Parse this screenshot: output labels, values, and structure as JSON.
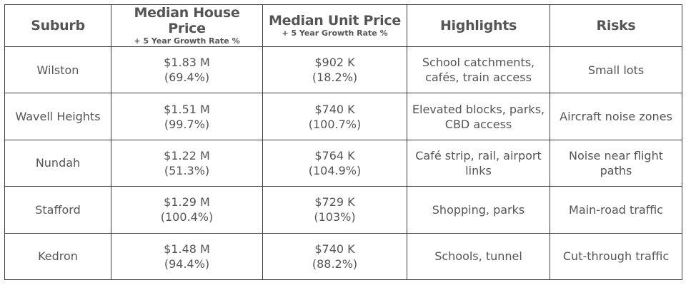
{
  "table": {
    "headers": {
      "suburb": "Suburb",
      "house_price": "Median House Price",
      "house_price_sub": "+ 5 Year Growth Rate %",
      "unit_price": "Median Unit Price",
      "unit_price_sub": "+ 5 Year Growth Rate %",
      "highlights": "Highlights",
      "risks": "Risks"
    },
    "rows": [
      {
        "suburb": "Wilston",
        "house_price": "$1.83 M",
        "house_growth": "(69.4%)",
        "unit_price": "$902 K",
        "unit_growth": "(18.2%)",
        "highlights_1": "School catchments,",
        "highlights_2": "cafés, train access",
        "risks_1": "Small lots",
        "risks_2": ""
      },
      {
        "suburb": "Wavell Heights",
        "house_price": "$1.51 M",
        "house_growth": "(99.7%)",
        "unit_price": "$740 K",
        "unit_growth": "(100.7%)",
        "highlights_1": "Elevated blocks, parks,",
        "highlights_2": "CBD access",
        "risks_1": "Aircraft noise zones",
        "risks_2": ""
      },
      {
        "suburb": "Nundah",
        "house_price": "$1.22 M",
        "house_growth": "(51.3%)",
        "unit_price": "$764 K",
        "unit_growth": "(104.9%)",
        "highlights_1": "Café strip, rail, airport",
        "highlights_2": "links",
        "risks_1": "Noise near flight",
        "risks_2": "paths"
      },
      {
        "suburb": "Stafford",
        "house_price": "$1.29 M",
        "house_growth": "(100.4%)",
        "unit_price": "$729 K",
        "unit_growth": "(103%)",
        "highlights_1": "Shopping, parks",
        "highlights_2": "",
        "risks_1": "Main-road traffic",
        "risks_2": ""
      },
      {
        "suburb": "Kedron",
        "house_price": "$1.48 M",
        "house_growth": "(94.4%)",
        "unit_price": "$740 K",
        "unit_growth": "(88.2%)",
        "highlights_1": "Schools, tunnel",
        "highlights_2": "",
        "risks_1": "Cut-through traffic",
        "risks_2": ""
      }
    ]
  }
}
